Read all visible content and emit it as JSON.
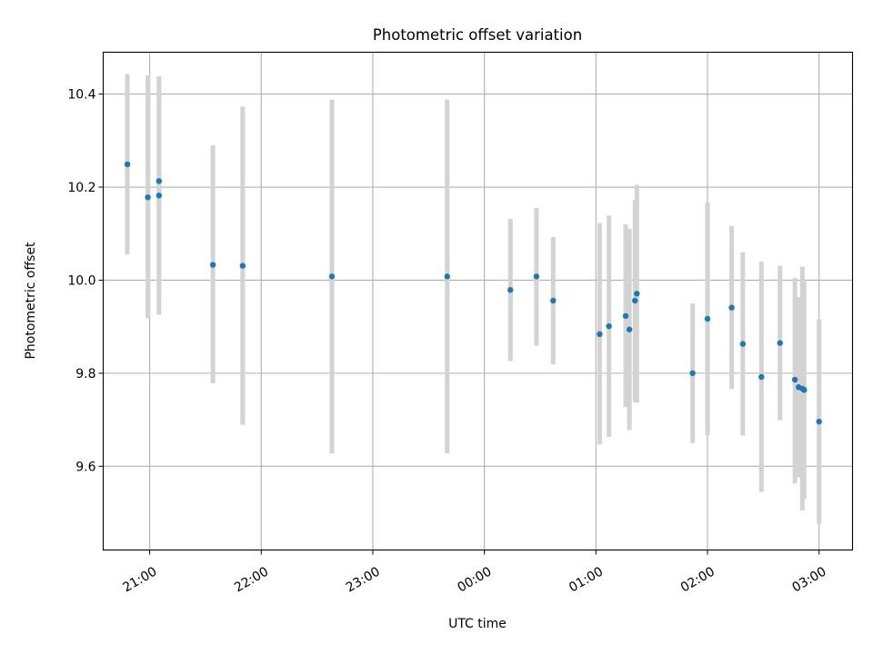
{
  "chart_data": {
    "type": "scatter",
    "title": "Photometric offset variation",
    "xlabel": "UTC time",
    "ylabel": "Photometric offset",
    "x_axis_type": "time",
    "xlim": [
      "20:35",
      "03:18"
    ],
    "ylim": [
      9.42,
      10.49
    ],
    "x_ticks": [
      "21:00",
      "22:00",
      "23:00",
      "00:00",
      "01:00",
      "02:00",
      "03:00"
    ],
    "y_ticks": [
      9.6,
      9.8,
      10.0,
      10.2,
      10.4
    ],
    "y_tick_labels": [
      "9.6",
      "9.8",
      "10.0",
      "10.2",
      "10.4"
    ],
    "grid": true,
    "colors": {
      "point": "#1f77b4",
      "errorbar": "#d3d3d3"
    },
    "series": [
      {
        "points": [
          {
            "time": "20:48",
            "y": 10.249,
            "low": 10.055,
            "high": 10.443
          },
          {
            "time": "20:59",
            "y": 10.178,
            "low": 9.918,
            "high": 10.44
          },
          {
            "time": "21:05",
            "y": 10.213,
            "low": 9.985,
            "high": 10.438
          },
          {
            "time": "21:05",
            "y": 10.182,
            "low": 9.926,
            "high": 10.438
          },
          {
            "time": "21:34",
            "y": 10.033,
            "low": 9.778,
            "high": 10.29
          },
          {
            "time": "21:50",
            "y": 10.031,
            "low": 9.689,
            "high": 10.373
          },
          {
            "time": "22:38",
            "y": 10.008,
            "low": 9.628,
            "high": 10.388
          },
          {
            "time": "23:40",
            "y": 10.008,
            "low": 9.628,
            "high": 10.388
          },
          {
            "time": "00:14",
            "y": 9.979,
            "low": 9.826,
            "high": 10.132
          },
          {
            "time": "00:28",
            "y": 10.008,
            "low": 9.859,
            "high": 10.155
          },
          {
            "time": "00:37",
            "y": 9.956,
            "low": 9.819,
            "high": 10.093
          },
          {
            "time": "01:02",
            "y": 9.884,
            "low": 9.647,
            "high": 10.123
          },
          {
            "time": "01:07",
            "y": 9.901,
            "low": 9.663,
            "high": 10.139
          },
          {
            "time": "01:16",
            "y": 9.923,
            "low": 9.727,
            "high": 10.12
          },
          {
            "time": "01:18",
            "y": 9.894,
            "low": 9.678,
            "high": 10.11
          },
          {
            "time": "01:21",
            "y": 9.956,
            "low": 9.738,
            "high": 10.173
          },
          {
            "time": "01:22",
            "y": 9.971,
            "low": 9.737,
            "high": 10.205
          },
          {
            "time": "01:52",
            "y": 9.8,
            "low": 9.65,
            "high": 9.95
          },
          {
            "time": "02:00",
            "y": 9.917,
            "low": 9.667,
            "high": 10.167
          },
          {
            "time": "02:13",
            "y": 9.941,
            "low": 9.766,
            "high": 10.116
          },
          {
            "time": "02:19",
            "y": 9.863,
            "low": 9.666,
            "high": 10.06
          },
          {
            "time": "02:29",
            "y": 9.792,
            "low": 9.545,
            "high": 10.04
          },
          {
            "time": "02:39",
            "y": 9.865,
            "low": 9.699,
            "high": 10.031
          },
          {
            "time": "02:47",
            "y": 9.786,
            "low": 9.563,
            "high": 10.005
          },
          {
            "time": "02:49",
            "y": 9.77,
            "low": 9.576,
            "high": 9.964
          },
          {
            "time": "02:51",
            "y": 9.767,
            "low": 9.505,
            "high": 10.029
          },
          {
            "time": "02:52",
            "y": 9.764,
            "low": 9.53,
            "high": 9.997
          },
          {
            "time": "03:00",
            "y": 9.696,
            "low": 9.476,
            "high": 9.916
          }
        ]
      }
    ]
  }
}
